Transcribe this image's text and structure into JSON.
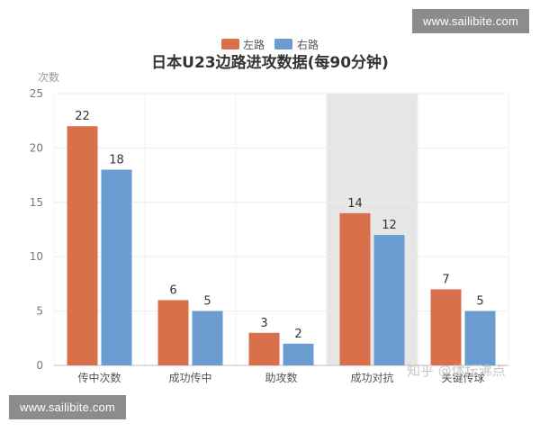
{
  "watermark_top": "www.sailibite.com",
  "watermark_bottom": "www.sailibite.com",
  "credit": "知乎 @体坛沸点",
  "colors": {
    "left": "#d9704c",
    "right": "#6a9bd1",
    "highlight_band": "#e6e6e6"
  },
  "chart_data": {
    "type": "bar",
    "title": "日本U23边路进攻数据(每90分钟)",
    "ylabel": "次数",
    "xlabel": "",
    "categories": [
      "传中次数",
      "成功传中",
      "助攻数",
      "成功对抗",
      "关键传球"
    ],
    "series": [
      {
        "name": "左路",
        "values": [
          22,
          6,
          3,
          14,
          7
        ]
      },
      {
        "name": "右路",
        "values": [
          18,
          5,
          2,
          12,
          5
        ]
      }
    ],
    "ylim": [
      0,
      25
    ],
    "yticks": [
      0,
      5,
      10,
      15,
      20,
      25
    ],
    "grid": true,
    "legend": "top-center",
    "highlighted_category": "成功对抗"
  }
}
